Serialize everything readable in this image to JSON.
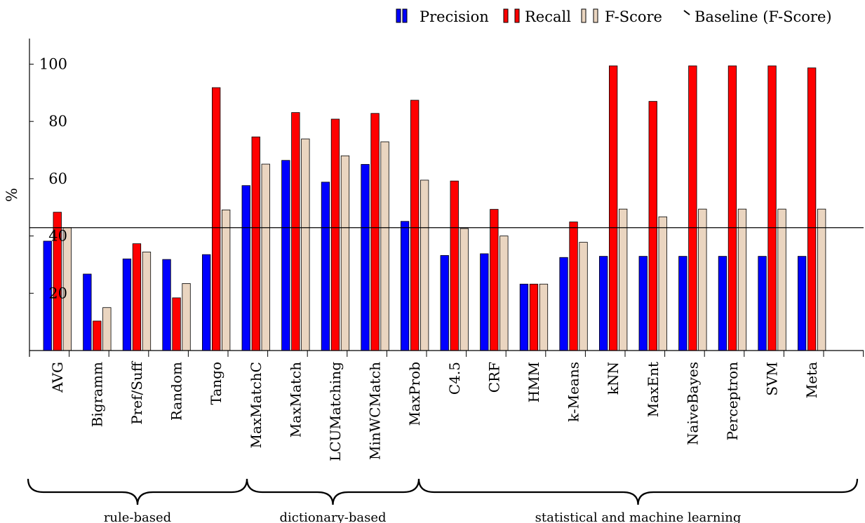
{
  "chart_data": {
    "type": "bar",
    "ylabel": "%",
    "ylim": [
      0,
      110
    ],
    "yticks": [
      20,
      40,
      60,
      80,
      100
    ],
    "baseline": {
      "name": "Baseline (F-Score)",
      "value": 42.9
    },
    "categories": [
      "AVG",
      "Bigramm",
      "Pref/Suff",
      "Random",
      "Tango",
      "MaxMatchC",
      "MaxMatch",
      "LCUMatching",
      "MinWCMatch",
      "MaxProb",
      "C4.5",
      "CRF",
      "HMM",
      "k-Means",
      "kNN",
      "MaxEnt",
      "NaiveBayes",
      "Perceptron",
      "SVM",
      "Meta"
    ],
    "series": [
      {
        "name": "Precision",
        "color": "#0000ff",
        "values": [
          38.2,
          26.7,
          32.0,
          31.8,
          33.5,
          57.6,
          66.4,
          58.8,
          65.0,
          45.1,
          33.2,
          33.8,
          23.2,
          32.5,
          32.9,
          32.9,
          32.9,
          32.9,
          32.9,
          32.9
        ]
      },
      {
        "name": "Recall",
        "color": "#ff0000",
        "values": [
          48.3,
          10.3,
          37.3,
          18.4,
          91.8,
          74.6,
          83.1,
          80.8,
          82.8,
          87.4,
          59.2,
          49.3,
          23.2,
          44.9,
          99.4,
          87.0,
          99.4,
          99.4,
          99.4,
          98.7
        ]
      },
      {
        "name": "F-Score",
        "color": "#ead5c0",
        "values": [
          42.9,
          15.0,
          34.4,
          23.4,
          49.1,
          65.1,
          73.9,
          68.0,
          72.9,
          59.5,
          42.6,
          40.0,
          23.2,
          37.8,
          49.4,
          46.7,
          49.4,
          49.4,
          49.4,
          49.4
        ]
      }
    ],
    "legend_position": "top-right",
    "groups": [
      {
        "label": "rule-based",
        "from": 0,
        "to": 4
      },
      {
        "label": "dictionary-based",
        "from": 5,
        "to": 8
      },
      {
        "label": "statistical and machine learning",
        "from": 9,
        "to": 19
      }
    ]
  }
}
